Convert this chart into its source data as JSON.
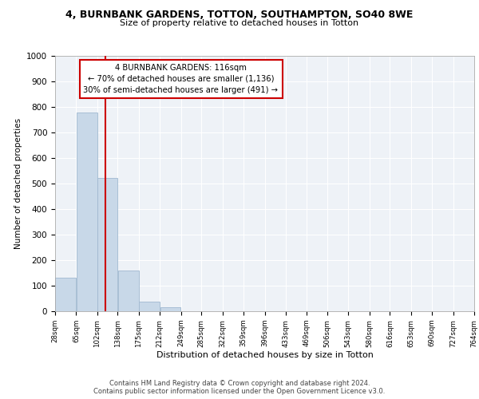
{
  "title1": "4, BURNBANK GARDENS, TOTTON, SOUTHAMPTON, SO40 8WE",
  "title2": "Size of property relative to detached houses in Totton",
  "xlabel": "Distribution of detached houses by size in Totton",
  "ylabel": "Number of detached properties",
  "bar_edges": [
    28,
    65,
    102,
    138,
    175,
    212,
    249,
    285,
    322,
    359,
    396,
    433,
    469,
    506,
    543,
    580,
    616,
    653,
    690,
    727,
    764
  ],
  "bar_heights": [
    132,
    777,
    522,
    160,
    37,
    15,
    0,
    0,
    0,
    0,
    0,
    0,
    0,
    0,
    0,
    0,
    0,
    0,
    0,
    0
  ],
  "bar_color": "#c8d8e8",
  "bar_edge_color": "#a0b8d0",
  "property_size": 116,
  "vline_color": "#cc0000",
  "annotation_line1": "4 BURNBANK GARDENS: 116sqm",
  "annotation_line2": "← 70% of detached houses are smaller (1,136)",
  "annotation_line3": "30% of semi-detached houses are larger (491) →",
  "annotation_box_color": "#cc0000",
  "ylim": [
    0,
    1000
  ],
  "yticks": [
    0,
    100,
    200,
    300,
    400,
    500,
    600,
    700,
    800,
    900,
    1000
  ],
  "footnote1": "Contains HM Land Registry data © Crown copyright and database right 2024.",
  "footnote2": "Contains public sector information licensed under the Open Government Licence v3.0.",
  "bg_color": "#eef2f7",
  "fig_bg_color": "#ffffff"
}
